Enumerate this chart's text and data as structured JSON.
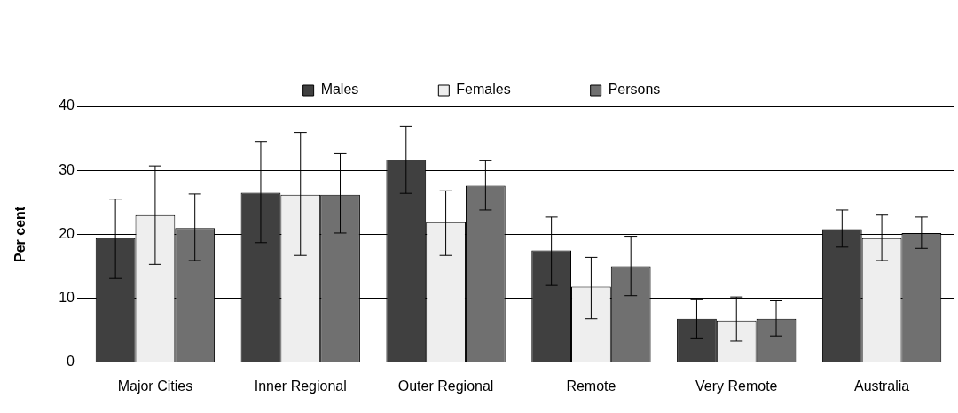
{
  "chart_data": {
    "type": "bar",
    "ylabel": "Per cent",
    "categories": [
      "Major Cities",
      "Inner Regional",
      "Outer Regional",
      "Remote",
      "Very Remote",
      "Australia"
    ],
    "series": [
      {
        "name": "Males",
        "color": "#404040",
        "values": [
          19.4,
          26.5,
          31.7,
          17.5,
          6.8,
          20.8
        ],
        "errors": [
          [
            13.1,
            25.5
          ],
          [
            18.7,
            34.5
          ],
          [
            26.4,
            36.9
          ],
          [
            12.0,
            22.7
          ],
          [
            3.8,
            9.9
          ],
          [
            18.0,
            23.8
          ]
        ]
      },
      {
        "name": "Females",
        "color": "#eeeeee",
        "values": [
          23.0,
          26.2,
          21.9,
          11.8,
          6.5,
          19.4
        ],
        "errors": [
          [
            15.3,
            30.7
          ],
          [
            16.7,
            35.9
          ],
          [
            16.7,
            26.8
          ],
          [
            6.8,
            16.4
          ],
          [
            3.3,
            10.2
          ],
          [
            15.9,
            23.0
          ]
        ]
      },
      {
        "name": "Persons",
        "color": "#707070",
        "values": [
          21.0,
          26.2,
          27.6,
          15.0,
          6.8,
          20.2
        ],
        "errors": [
          [
            15.9,
            26.3
          ],
          [
            20.2,
            32.6
          ],
          [
            23.8,
            31.5
          ],
          [
            10.4,
            19.7
          ],
          [
            4.1,
            9.6
          ],
          [
            17.8,
            22.7
          ]
        ]
      }
    ],
    "ylim": [
      0,
      40
    ],
    "yticks": [
      0,
      10,
      20,
      30,
      40
    ],
    "grid": "y",
    "legend": "top"
  }
}
